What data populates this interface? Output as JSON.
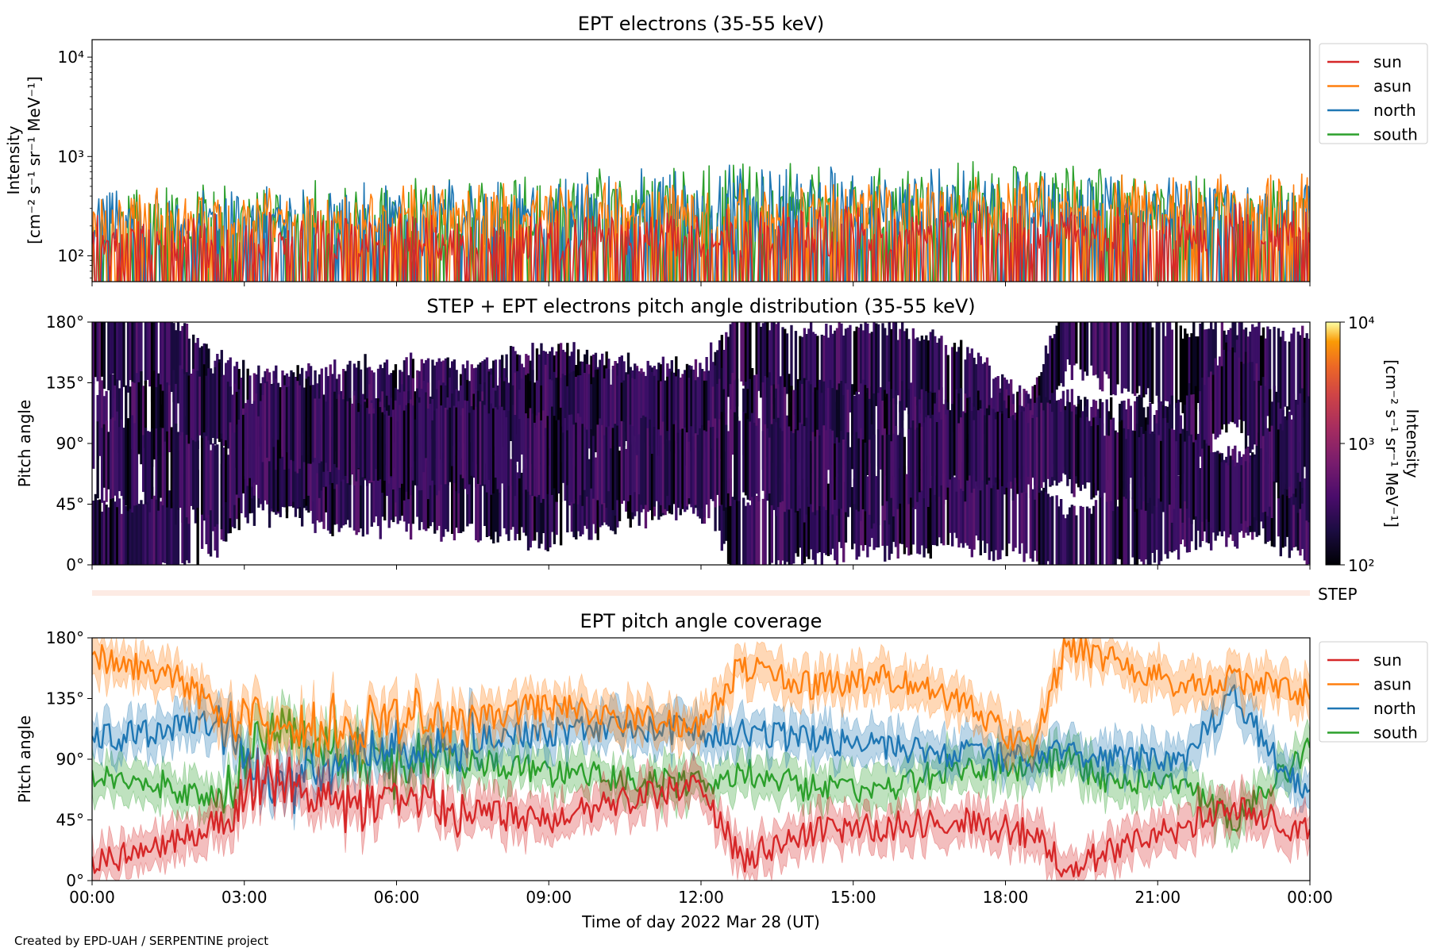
{
  "chart_data": [
    {
      "type": "line",
      "title": "EPT electrons (35-55 keV)",
      "ylabel": "Intensity",
      "ylabel_units": "[cm⁻² s⁻¹ sr⁻¹ MeV⁻¹]",
      "yscale": "log",
      "ylim": [
        55,
        15000
      ],
      "yticks": [
        {
          "value": 100,
          "label": "10²"
        },
        {
          "value": 1000,
          "label": "10³"
        },
        {
          "value": 10000,
          "label": "10⁴"
        }
      ],
      "xlim": [
        "2022-03-28T00:00",
        "2022-03-29T00:00"
      ],
      "legend": "outside-right",
      "series": [
        {
          "name": "sun",
          "color": "#d62728"
        },
        {
          "name": "asun",
          "color": "#ff7f0e"
        },
        {
          "name": "north",
          "color": "#1f77b4"
        },
        {
          "name": "south",
          "color": "#2ca02c"
        }
      ],
      "series_levels": {
        "sun": [
          [
            0,
            95,
            240
          ],
          [
            6,
            100,
            260
          ],
          [
            12,
            110,
            280
          ],
          [
            18,
            120,
            300
          ],
          [
            24,
            130,
            320
          ]
        ],
        "asun": [
          [
            0,
            180,
            430
          ],
          [
            6,
            190,
            470
          ],
          [
            12,
            210,
            520
          ],
          [
            18,
            220,
            600
          ],
          [
            24,
            230,
            650
          ]
        ],
        "north": [
          [
            0,
            150,
            400
          ],
          [
            6,
            160,
            520
          ],
          [
            12,
            170,
            760
          ],
          [
            18,
            180,
            700
          ],
          [
            24,
            190,
            520
          ]
        ],
        "south": [
          [
            0,
            150,
            420
          ],
          [
            6,
            160,
            560
          ],
          [
            12,
            170,
            780
          ],
          [
            18,
            180,
            820
          ],
          [
            24,
            190,
            500
          ]
        ]
      }
    },
    {
      "type": "heatmap",
      "title": "STEP + EPT electrons pitch angle distribution (35-55 keV)",
      "ylabel": "Pitch angle",
      "ylim": [
        0,
        180
      ],
      "yticks": [
        "0°",
        "45°",
        "90°",
        "135°",
        "180°"
      ],
      "xlim": [
        "2022-03-28T00:00",
        "2022-03-29T00:00"
      ],
      "colorbar": {
        "label": "Intensity",
        "units": "[cm⁻² s⁻¹ sr⁻¹ MeV⁻¹]",
        "scale": "log",
        "range": [
          100,
          10000
        ],
        "ticks": [
          "10²",
          "10³",
          "10⁴"
        ]
      }
    },
    {
      "type": "line",
      "title": "STEP pitch angle coverage strip",
      "label": "STEP"
    },
    {
      "type": "area",
      "title": "EPT pitch angle coverage",
      "ylabel": "Pitch angle",
      "xlabel": "Time of day 2022 Mar 28 (UT)",
      "ylim": [
        0,
        180
      ],
      "yticks": [
        "0°",
        "45°",
        "90°",
        "135°",
        "180°"
      ],
      "xticks": [
        "00:00",
        "03:00",
        "06:00",
        "09:00",
        "12:00",
        "15:00",
        "18:00",
        "21:00",
        "00:00"
      ],
      "legend": "outside-right",
      "series": [
        {
          "name": "sun",
          "color": "#d62728",
          "x": [
            0,
            1.5,
            2.5,
            3.5,
            5,
            6,
            7.5,
            9,
            10.5,
            12,
            12.8,
            14,
            15.5,
            17,
            18.5,
            19.2,
            20,
            21.5,
            22.5,
            24
          ],
          "values": [
            15,
            25,
            45,
            75,
            55,
            60,
            50,
            45,
            60,
            70,
            15,
            35,
            40,
            45,
            35,
            10,
            20,
            40,
            55,
            35
          ]
        },
        {
          "name": "asun",
          "color": "#ff7f0e",
          "x": [
            0,
            1.5,
            2.5,
            3.5,
            5,
            6,
            7.5,
            9,
            10.5,
            12,
            12.8,
            14,
            15.5,
            17,
            18.5,
            19.2,
            20,
            21.5,
            22.5,
            24
          ],
          "values": [
            165,
            155,
            125,
            110,
            115,
            120,
            120,
            130,
            120,
            115,
            160,
            145,
            150,
            135,
            95,
            175,
            165,
            145,
            150,
            140
          ]
        },
        {
          "name": "north",
          "color": "#1f77b4",
          "x": [
            0,
            1.5,
            2.5,
            3.5,
            5,
            6,
            7.5,
            9,
            10.5,
            12,
            12.8,
            14,
            15.5,
            17,
            18.5,
            19.2,
            20,
            21.5,
            22.5,
            24
          ],
          "values": [
            105,
            110,
            120,
            65,
            90,
            100,
            105,
            110,
            115,
            110,
            110,
            105,
            100,
            95,
            90,
            95,
            90,
            90,
            135,
            60
          ]
        },
        {
          "name": "south",
          "color": "#2ca02c",
          "x": [
            0,
            1.5,
            2.5,
            3.5,
            5,
            6,
            7.5,
            9,
            10.5,
            12,
            12.8,
            14,
            15.5,
            17,
            18.5,
            19.2,
            20,
            21.5,
            22.5,
            24
          ],
          "values": [
            80,
            70,
            60,
            110,
            95,
            85,
            90,
            80,
            75,
            70,
            80,
            70,
            65,
            85,
            85,
            90,
            75,
            70,
            45,
            100
          ]
        }
      ]
    }
  ],
  "credit": "Created by EPD-UAH / SERPENTINE project",
  "colors": {
    "sun": "#d62728",
    "asun": "#ff7f0e",
    "north": "#1f77b4",
    "south": "#2ca02c",
    "step_strip": "#fdebe4"
  }
}
